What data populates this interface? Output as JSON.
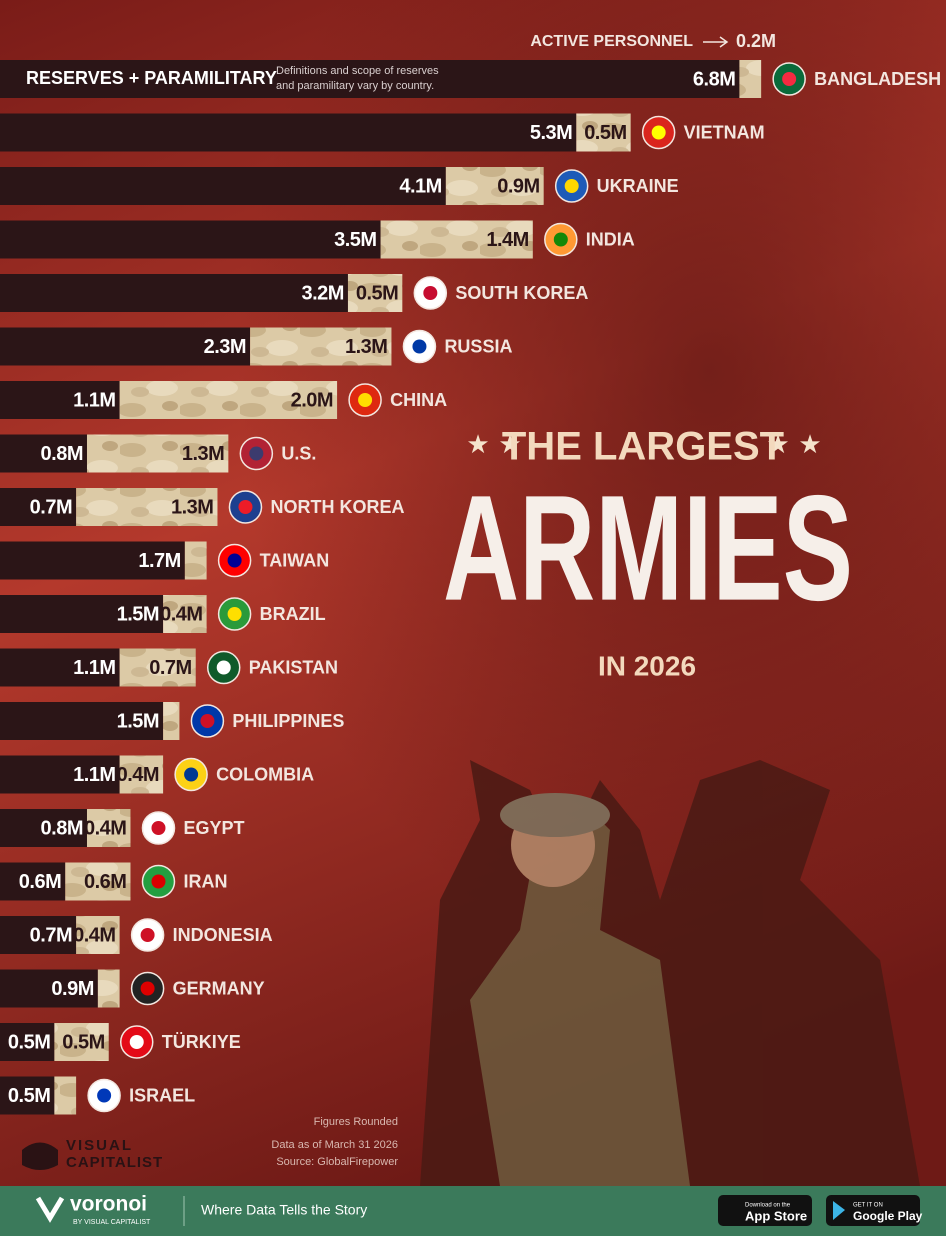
{
  "chart_data": {
    "type": "stacked-bar-horizontal",
    "title": [
      "THE LARGEST",
      "ARMIES",
      "IN 2026"
    ],
    "note": [
      "Definitions and scope of reserves",
      "and paramilitary vary by country."
    ],
    "categories": [
      "BANGLADESH",
      "VIETNAM",
      "UKRAINE",
      "INDIA",
      "SOUTH KOREA",
      "RUSSIA",
      "CHINA",
      "U.S.",
      "NORTH KOREA",
      "TAIWAN",
      "BRAZIL",
      "PAKISTAN",
      "PHILIPPINES",
      "COLOMBIA",
      "EGYPT",
      "IRAN",
      "INDONESIA",
      "GERMANY",
      "TÜRKIYE",
      "ISRAEL"
    ],
    "series": [
      {
        "name": "RESERVES + PARAMILITARY",
        "color": "#2b1517",
        "values": [
          6.8,
          5.3,
          4.1,
          3.5,
          3.2,
          2.3,
          1.1,
          0.8,
          0.7,
          1.7,
          1.5,
          1.1,
          1.5,
          1.1,
          0.8,
          0.6,
          0.7,
          0.9,
          0.5,
          0.5
        ],
        "value_labels": [
          "6.8M",
          "5.3M",
          "4.1M",
          "3.5M",
          "3.2M",
          "2.3M",
          "1.1M",
          "0.8M",
          "0.7M",
          "1.7M",
          "1.5M",
          "1.1M",
          "1.5M",
          "1.1M",
          "0.8M",
          "0.6M",
          "0.7M",
          "0.9M",
          "0.5M",
          "0.5M"
        ]
      },
      {
        "name": "ACTIVE PERSONNEL",
        "color": "#d9c6a2",
        "values": [
          0.2,
          0.5,
          0.9,
          1.4,
          0.5,
          1.3,
          2.0,
          1.3,
          1.3,
          0.2,
          0.4,
          0.7,
          0.15,
          0.4,
          0.4,
          0.6,
          0.4,
          0.2,
          0.5,
          0.2
        ],
        "value_labels": [
          "0.2M",
          "0.5M",
          "0.9M",
          "1.4M",
          "0.5M",
          "1.3M",
          "2.0M",
          "1.3M",
          "1.3M",
          null,
          "0.4M",
          "0.7M",
          null,
          "0.4M",
          "0.4M",
          "0.6M",
          "0.4M",
          null,
          "0.5M",
          null
        ]
      }
    ],
    "xlim": [
      0,
      8.7
    ],
    "footnotes": [
      "Figures Rounded",
      "Data as of March 31 2026",
      "Source: GlobalFirepower"
    ]
  },
  "branding": {
    "publisher": [
      "VISUAL",
      "CAPITALIST"
    ],
    "voronoi": "voronoi",
    "voronoi_by": "BY VISUAL CAPITALIST",
    "tagline": "Where Data Tells the Story",
    "app_store": [
      "Download on the",
      "App Store"
    ],
    "google_play": [
      "GET IT ON",
      "Google Play"
    ]
  }
}
